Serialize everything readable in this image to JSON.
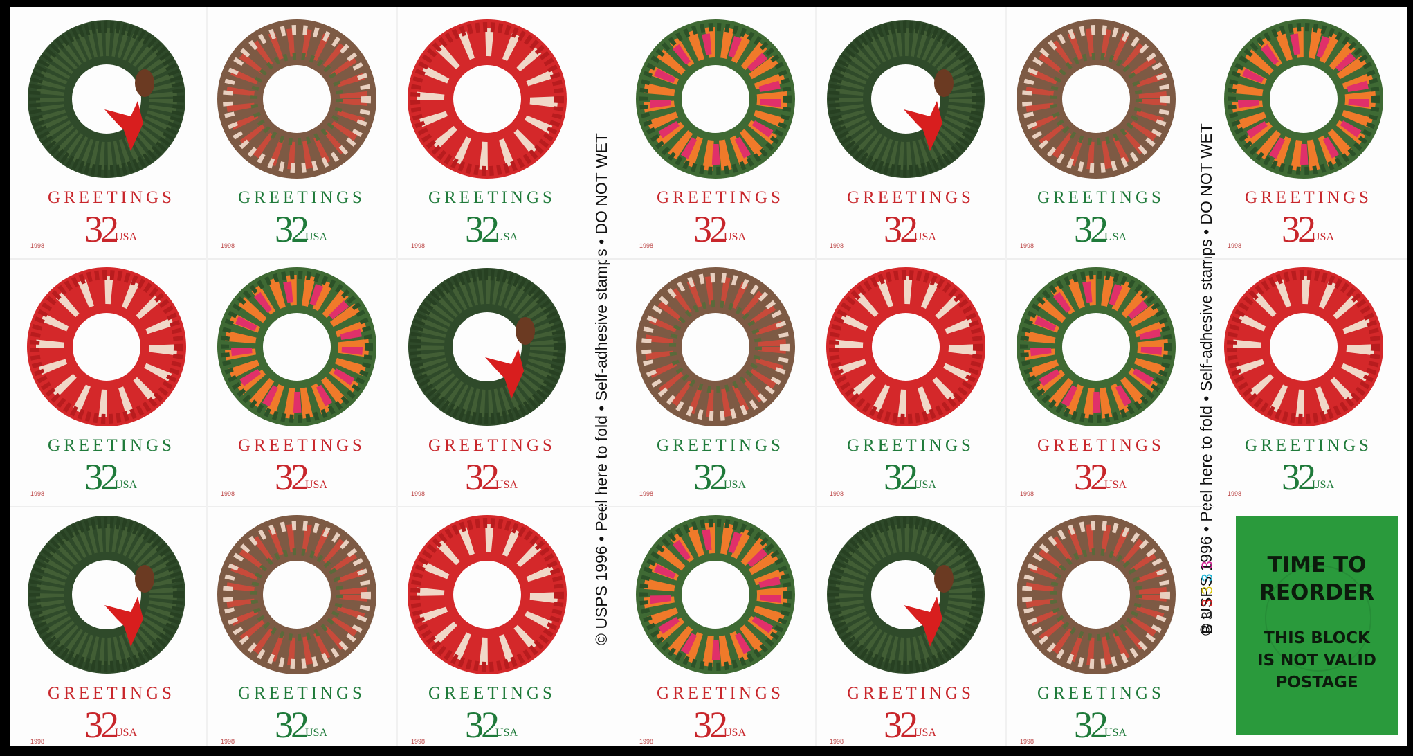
{
  "stamps": {
    "greeting": "GREETINGS",
    "denomination": "32",
    "country": "USA",
    "year": "1998"
  },
  "side_text": "© USPS 1996 • Peel here to fold • Self-adhesive stamps • DO NOT WET",
  "plate": {
    "prefix": "B",
    "digits": [
      "3",
      "3",
      "3",
      "3",
      "3"
    ],
    "colors": [
      "#2a2a2a",
      "#d22020",
      "#d9c400",
      "#1fb5d6",
      "#d62a9a"
    ]
  },
  "reorder": {
    "line1": "TIME TO",
    "line2": "REORDER",
    "line3": "THIS BLOCK",
    "line4": "IS NOT VALID",
    "line5": "POSTAGE"
  },
  "colors": {
    "red": "#c8262b",
    "green": "#1f7a3a",
    "label_green": "#2a9a3c"
  }
}
